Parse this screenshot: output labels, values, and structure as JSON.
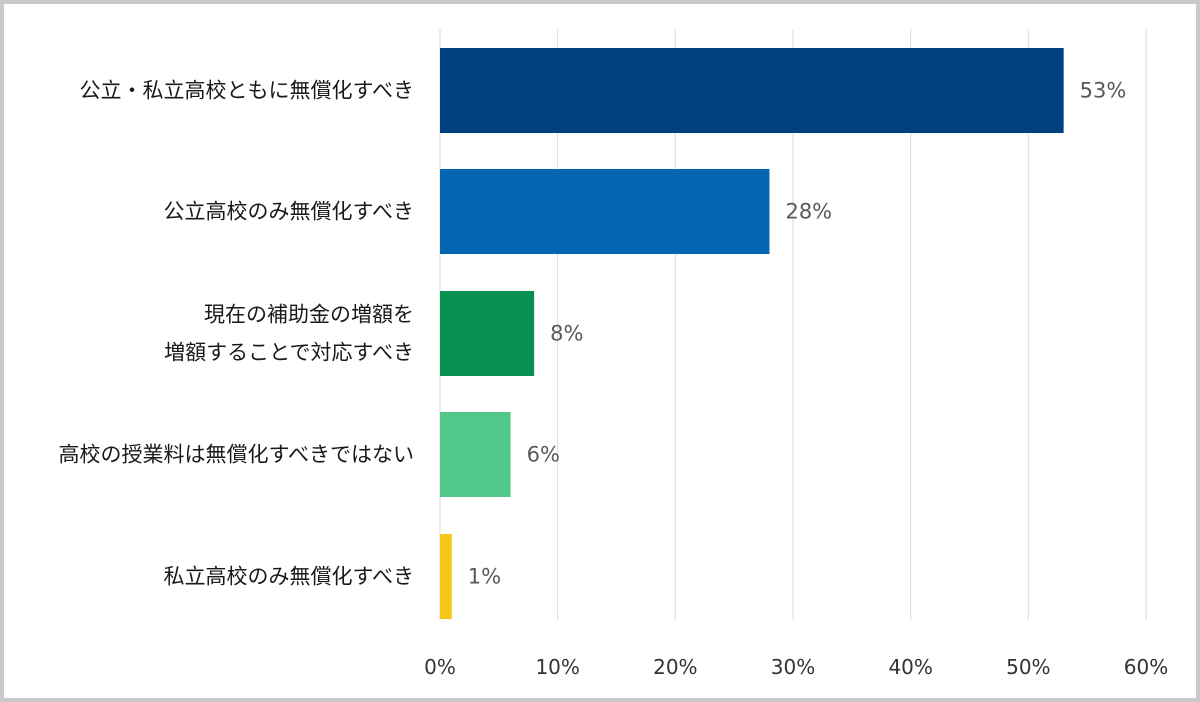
{
  "chart_data": {
    "type": "bar",
    "orientation": "horizontal",
    "categories": [
      [
        "公立・私立高校ともに無償化すべき"
      ],
      [
        "公立高校のみ無償化すべき"
      ],
      [
        "現在の補助金の増額を",
        "増額することで対応すべき"
      ],
      [
        "高校の授業料は無償化すべきではない"
      ],
      [
        "私立高校のみ無償化すべき"
      ]
    ],
    "values": [
      53,
      28,
      8,
      6,
      1
    ],
    "value_labels": [
      "53%",
      "28%",
      "8%",
      "6%",
      "1%"
    ],
    "colors": [
      "#003f80",
      "#0466b3",
      "#07904f",
      "#52c78a",
      "#f5c518"
    ],
    "xlim": [
      0,
      60
    ],
    "xticks": [
      0,
      10,
      20,
      30,
      40,
      50,
      60
    ],
    "xtick_labels": [
      "0%",
      "10%",
      "20%",
      "30%",
      "40%",
      "50%",
      "60%"
    ],
    "grid": true,
    "title": "",
    "xlabel": "",
    "ylabel": ""
  }
}
